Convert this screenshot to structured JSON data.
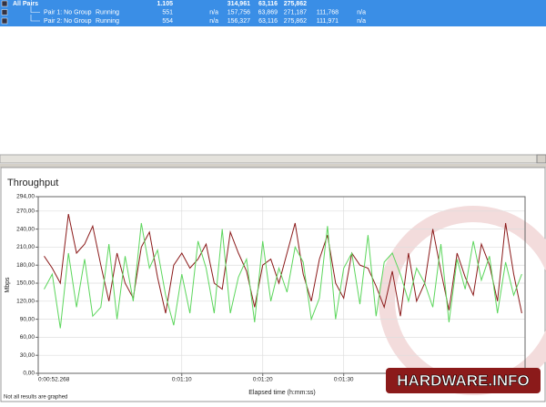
{
  "table": {
    "rows": [
      {
        "name": "All Pairs",
        "values": [
          "1.105",
          "314,961",
          "63,116",
          "275,862"
        ]
      },
      {
        "name": "Pair 1: No Group",
        "status": "Running",
        "values": [
          "551",
          "n/a",
          "157,756",
          "63,869",
          "271,187",
          "111,768",
          "n/a"
        ]
      },
      {
        "name": "Pair 2: No Group",
        "status": "Running",
        "values": [
          "554",
          "n/a",
          "156,327",
          "63,116",
          "275,862",
          "111,971",
          "n/a"
        ]
      }
    ]
  },
  "chart_data": {
    "type": "line",
    "title": "Throughput",
    "x_label": "Elapsed time (h:mm:ss)",
    "y_label": "Mbps",
    "x": [
      53,
      54,
      55,
      56,
      57,
      58,
      59,
      60,
      61,
      62,
      63,
      64,
      65,
      66,
      67,
      68,
      69,
      70,
      71,
      72,
      73,
      74,
      75,
      76,
      77,
      78,
      79,
      80,
      81,
      82,
      83,
      84,
      85,
      86,
      87,
      88,
      89,
      90,
      91,
      92,
      93,
      94,
      95,
      96,
      97,
      98,
      99,
      100,
      101,
      102,
      103,
      104,
      105,
      106,
      107,
      108,
      109,
      110,
      111,
      112
    ],
    "series": [
      {
        "color": "#8b1a1a",
        "values": [
          195,
          175,
          150,
          265,
          200,
          215,
          245,
          180,
          120,
          200,
          150,
          125,
          210,
          235,
          160,
          100,
          180,
          200,
          175,
          190,
          215,
          150,
          140,
          235,
          200,
          170,
          110,
          180,
          190,
          150,
          200,
          250,
          165,
          120,
          190,
          230,
          150,
          125,
          200,
          180,
          175,
          145,
          110,
          170,
          95,
          200,
          120,
          150,
          240,
          170,
          105,
          200,
          160,
          130,
          215,
          180,
          120,
          250,
          165,
          100
        ]
      },
      {
        "color": "#5cd65c",
        "values": [
          140,
          165,
          75,
          200,
          110,
          190,
          95,
          110,
          215,
          90,
          195,
          120,
          250,
          175,
          205,
          130,
          80,
          165,
          100,
          220,
          175,
          100,
          240,
          100,
          160,
          190,
          85,
          220,
          120,
          175,
          135,
          210,
          185,
          90,
          125,
          245,
          90,
          175,
          200,
          115,
          230,
          95,
          185,
          200,
          165,
          120,
          175,
          150,
          110,
          215,
          85,
          190,
          140,
          220,
          155,
          195,
          100,
          185,
          130,
          165
        ]
      }
    ],
    "xlim": [
      52.268,
      112.4
    ],
    "xticks": [
      {
        "value": 52.268,
        "label": "0:00:52.268"
      },
      {
        "value": 70,
        "label": "0:01:10"
      },
      {
        "value": 80,
        "label": "0:01:20"
      },
      {
        "value": 90,
        "label": "0:01:30"
      }
    ],
    "ylim": [
      0,
      294
    ],
    "yticks": [
      {
        "value": 0,
        "label": "0,00"
      },
      {
        "value": 30,
        "label": "30,00"
      },
      {
        "value": 60,
        "label": "60,00"
      },
      {
        "value": 90,
        "label": "90,00"
      },
      {
        "value": 120,
        "label": "120,00"
      },
      {
        "value": 150,
        "label": "150,00"
      },
      {
        "value": 180,
        "label": "180,00"
      },
      {
        "value": 210,
        "label": "210,00"
      },
      {
        "value": 240,
        "label": "240,00"
      },
      {
        "value": 270,
        "label": "270,00"
      },
      {
        "value": 294,
        "label": "294,00"
      }
    ],
    "grid": true
  },
  "footer": "Not all results are graphed",
  "watermark": "HARDWARE.INFO"
}
